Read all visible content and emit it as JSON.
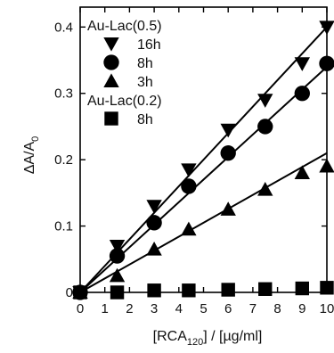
{
  "chart_data": {
    "type": "scatter",
    "xlabel_pre": "[RCA",
    "xlabel_sub": "120",
    "xlabel_post": "] / [µg/ml]",
    "ylabel_pre": "ΔA/A",
    "ylabel_sub": "0",
    "xlim": [
      0,
      10
    ],
    "ylim": [
      0,
      0.43
    ],
    "xticks": [
      0,
      1,
      2,
      3,
      4,
      5,
      6,
      7,
      8,
      9,
      10
    ],
    "yticks": [
      0,
      0.1,
      0.2,
      0.3,
      0.4
    ],
    "ytick_labels": [
      "0",
      "0.1",
      "0.2",
      "0.3",
      "0.4"
    ],
    "legend_groups": [
      {
        "title": "Au-Lac(0.5)",
        "series_index": [
          0,
          1,
          2
        ]
      },
      {
        "title": "Au-Lac(0.2)",
        "series_index": [
          3
        ]
      }
    ],
    "series": [
      {
        "name": "16h",
        "marker": "triangle-down",
        "x": [
          0,
          1.5,
          3,
          4.4,
          6,
          7.5,
          9,
          10
        ],
        "y": [
          0,
          0.07,
          0.13,
          0.185,
          0.245,
          0.29,
          0.345,
          0.4
        ],
        "fit": [
          [
            0,
            0
          ],
          [
            10,
            0.4
          ]
        ]
      },
      {
        "name": "8h",
        "marker": "circle",
        "x": [
          0,
          1.5,
          3,
          4.4,
          6,
          7.5,
          9,
          10
        ],
        "y": [
          0,
          0.055,
          0.105,
          0.16,
          0.21,
          0.25,
          0.3,
          0.345
        ],
        "fit": [
          [
            0,
            0
          ],
          [
            10,
            0.34
          ]
        ]
      },
      {
        "name": "3h",
        "marker": "triangle-up",
        "x": [
          0,
          1.5,
          3,
          4.4,
          6,
          7.5,
          9,
          10
        ],
        "y": [
          0,
          0.025,
          0.065,
          0.095,
          0.125,
          0.155,
          0.18,
          0.19
        ],
        "fit": [
          [
            0,
            0
          ],
          [
            10,
            0.21
          ]
        ]
      },
      {
        "name": "8h",
        "marker": "square",
        "x": [
          0,
          1.5,
          3,
          4.4,
          6,
          7.5,
          9,
          10
        ],
        "y": [
          0,
          0,
          0.003,
          0.003,
          0.004,
          0.005,
          0.006,
          0.007
        ],
        "fit": null
      }
    ]
  }
}
